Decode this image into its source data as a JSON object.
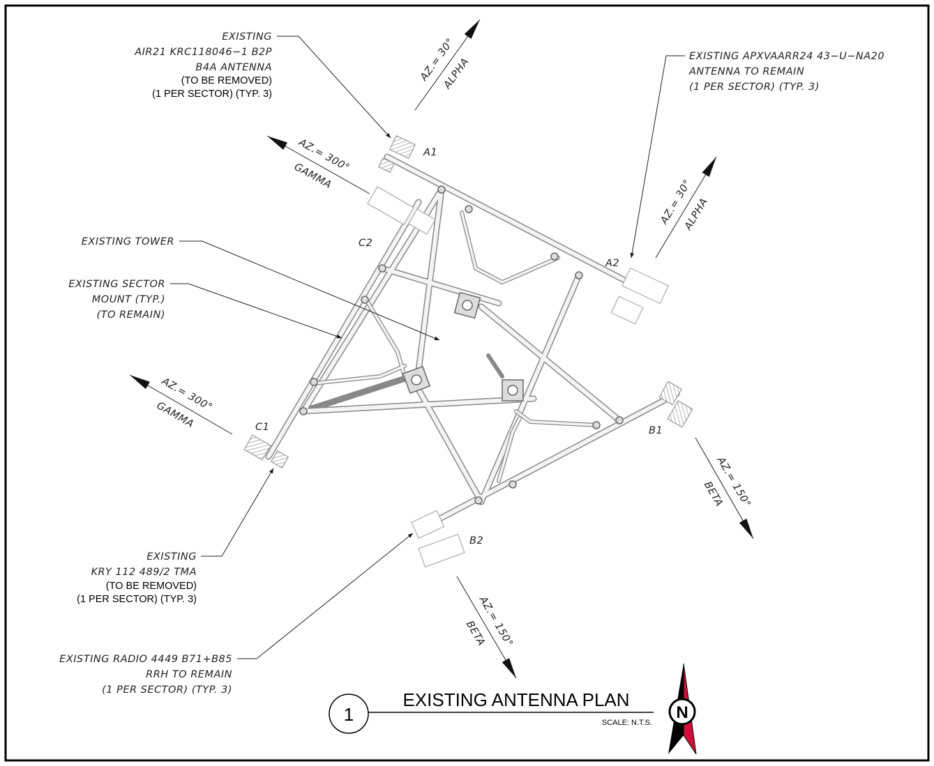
{
  "callouts": [
    {
      "lines": [
        "EXISTING",
        "AIR21 KRC118046−1 B2P",
        "B4A ANTENNA",
        "(TO BE REMOVED)",
        "(1 PER SECTOR) (TYP. 3)"
      ]
    },
    {
      "lines": [
        "EXISTING APXVAARR24 43−U−NA20",
        "ANTENNA TO REMAIN",
        "(1 PER SECTOR) (TYP. 3)"
      ]
    },
    {
      "lines": [
        "EXISTING TOWER"
      ]
    },
    {
      "lines": [
        "EXISTING SECTOR",
        "MOUNT (TYP.)",
        "(TO REMAIN)"
      ]
    },
    {
      "lines": [
        "EXISTING",
        "KRY 112 489/2 TMA",
        "(TO BE REMOVED)",
        "(1 PER SECTOR) (TYP. 3)"
      ]
    },
    {
      "lines": [
        "EXISTING RADIO 4449 B71+B85",
        "RRH TO REMAIN",
        "(1 PER SECTOR) (TYP. 3)"
      ]
    }
  ],
  "azimuths": [
    {
      "angle": "AZ.= 30°",
      "sector": "ALPHA"
    },
    {
      "angle": "AZ.= 300°",
      "sector": "GAMMA"
    },
    {
      "angle": "AZ.= 30°",
      "sector": "ALPHA"
    },
    {
      "angle": "AZ.= 300°",
      "sector": "GAMMA"
    },
    {
      "angle": "AZ.= 150°",
      "sector": "BETA"
    },
    {
      "angle": "AZ.= 150°",
      "sector": "BETA"
    }
  ],
  "antennas": [
    "A1",
    "A2",
    "B1",
    "B2",
    "C1",
    "C2"
  ],
  "title": {
    "number": "1",
    "text": "EXISTING ANTENNA PLAN",
    "scale": "SCALE: N.T.S."
  },
  "north": "N"
}
